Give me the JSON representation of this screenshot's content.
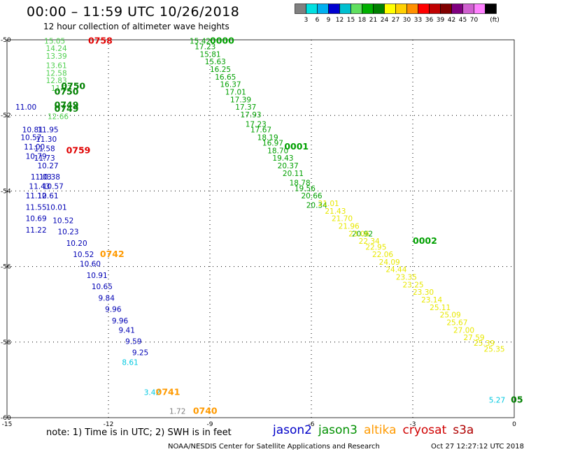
{
  "header": {
    "title": "00:00 – 11:59 UTC 10/26/2018",
    "subtitle": "12 hour collection of altimeter wave heights"
  },
  "colorbar": {
    "unit_label": "(ft)",
    "colors": [
      "#808080",
      "#00e0e0",
      "#00b0f0",
      "#0000d0",
      "#00c0d0",
      "#60e060",
      "#00b000",
      "#008000",
      "#ffff00",
      "#ffd000",
      "#ff9000",
      "#ff0000",
      "#c00000",
      "#800000",
      "#800080",
      "#d060d0",
      "#ff80ff",
      "#000000"
    ],
    "labels": [
      "3",
      "6",
      "9",
      "12",
      "15",
      "18",
      "21",
      "24",
      "27",
      "30",
      "33",
      "36",
      "39",
      "42",
      "45",
      "70"
    ]
  },
  "note": "note:  1) Time is in UTC;  2) SWH is in feet",
  "legend": [
    {
      "name": "jason2",
      "color": "#0000c8"
    },
    {
      "name": "jason3",
      "color": "#009000"
    },
    {
      "name": "altika",
      "color": "#ff9a00"
    },
    {
      "name": "cryosat",
      "color": "#d00000"
    },
    {
      "name": "s3a",
      "color": "#b00000"
    }
  ],
  "footer": {
    "left": "NOAA/NESDIS Center for Satellite Applications and Research",
    "right": "Oct 27 12:27:12 UTC 2018"
  },
  "chart_data": {
    "type": "scatter",
    "xlim": [
      -15,
      0
    ],
    "ylim": [
      -60,
      -50
    ],
    "x_ticks": [
      "-15",
      "-12",
      "-9",
      "-6",
      "-3",
      "0"
    ],
    "y_ticks": [
      "-50",
      "-52",
      "-54",
      "-56",
      "-58",
      "-60"
    ],
    "grid": true,
    "series": [
      {
        "name": "jason3",
        "color": "#00a000",
        "points": [
          {
            "x": -9.6,
            "y": -50.1,
            "v": "15.42"
          },
          {
            "x": -9.45,
            "y": -50.25,
            "v": "17.23"
          },
          {
            "x": -9.3,
            "y": -50.45,
            "v": "15.81"
          },
          {
            "x": -9.15,
            "y": -50.65,
            "v": "15.63"
          },
          {
            "x": -9.0,
            "y": -50.85,
            "v": "16.25"
          },
          {
            "x": -8.85,
            "y": -51.05,
            "v": "16.65"
          },
          {
            "x": -8.7,
            "y": -51.25,
            "v": "16.37"
          },
          {
            "x": -8.55,
            "y": -51.45,
            "v": "17.01"
          },
          {
            "x": -8.4,
            "y": -51.65,
            "v": "17.39"
          },
          {
            "x": -8.25,
            "y": -51.85,
            "v": "17.37"
          },
          {
            "x": -8.1,
            "y": -52.05,
            "v": "17.93"
          },
          {
            "x": -7.95,
            "y": -52.3,
            "v": "17.23"
          },
          {
            "x": -7.8,
            "y": -52.45,
            "v": "17.67"
          },
          {
            "x": -7.6,
            "y": -52.65,
            "v": "18.19"
          },
          {
            "x": -7.45,
            "y": -52.8,
            "v": "16.97"
          },
          {
            "x": -7.3,
            "y": -53.0,
            "v": "18.70"
          },
          {
            "x": -7.15,
            "y": -53.2,
            "v": "19.43"
          },
          {
            "x": -7.0,
            "y": -53.4,
            "v": "20.37"
          },
          {
            "x": -6.85,
            "y": -53.6,
            "v": "20.11"
          },
          {
            "x": -6.65,
            "y": -53.85,
            "v": "18.78"
          },
          {
            "x": -6.5,
            "y": -54.0,
            "v": "19.56"
          },
          {
            "x": -6.3,
            "y": -54.2,
            "v": "20.66"
          },
          {
            "x": -6.15,
            "y": -54.45,
            "v": "20.34"
          },
          {
            "x": -4.8,
            "y": -55.2,
            "v": "20.92"
          }
        ],
        "times": [
          {
            "x": -9.0,
            "y": -50.1,
            "t": "0000"
          },
          {
            "x": -6.8,
            "y": -52.9,
            "t": "0001"
          },
          {
            "x": -3.0,
            "y": -55.4,
            "t": "0002"
          }
        ]
      },
      {
        "name": "altika",
        "color": "#e8e800",
        "points": [
          {
            "x": -5.8,
            "y": -54.4,
            "v": "21.01"
          },
          {
            "x": -5.6,
            "y": -54.6,
            "v": "21.43"
          },
          {
            "x": -5.4,
            "y": -54.8,
            "v": "21.70"
          },
          {
            "x": -5.2,
            "y": -55.0,
            "v": "21.96"
          },
          {
            "x": -4.9,
            "y": -55.2,
            "v": "23.06"
          },
          {
            "x": -4.6,
            "y": -55.4,
            "v": "22.34"
          },
          {
            "x": -4.4,
            "y": -55.55,
            "v": "22.95"
          },
          {
            "x": -4.2,
            "y": -55.75,
            "v": "22.06"
          },
          {
            "x": -4.0,
            "y": -55.95,
            "v": "24.09"
          },
          {
            "x": -3.8,
            "y": -56.15,
            "v": "24.44"
          },
          {
            "x": -3.5,
            "y": -56.35,
            "v": "23.35"
          },
          {
            "x": -3.3,
            "y": -56.55,
            "v": "23.25"
          },
          {
            "x": -3.0,
            "y": -56.75,
            "v": "23.30"
          },
          {
            "x": -2.75,
            "y": -56.95,
            "v": "23.14"
          },
          {
            "x": -2.5,
            "y": -57.15,
            "v": "25.11"
          },
          {
            "x": -2.2,
            "y": -57.35,
            "v": "25.09"
          },
          {
            "x": -2.0,
            "y": -57.55,
            "v": "25.67"
          },
          {
            "x": -1.8,
            "y": -57.75,
            "v": "27.00"
          },
          {
            "x": -1.5,
            "y": -57.95,
            "v": "27.59"
          },
          {
            "x": -1.2,
            "y": -58.1,
            "v": "25.39"
          },
          {
            "x": -0.9,
            "y": -58.25,
            "v": "25.35"
          }
        ]
      },
      {
        "name": "jason2",
        "color": "#0000b4",
        "points": [
          {
            "x": -14.75,
            "y": -51.85,
            "v": "11.00"
          },
          {
            "x": -14.55,
            "y": -52.45,
            "v": "10.81"
          },
          {
            "x": -14.6,
            "y": -52.65,
            "v": "10.57"
          },
          {
            "x": -14.1,
            "y": -52.45,
            "v": "11.95"
          },
          {
            "x": -14.15,
            "y": -52.7,
            "v": "11.30"
          },
          {
            "x": -14.2,
            "y": -52.95,
            "v": "11.58"
          },
          {
            "x": -14.5,
            "y": -52.9,
            "v": "11.00"
          },
          {
            "x": -14.45,
            "y": -53.15,
            "v": "10.79"
          },
          {
            "x": -14.2,
            "y": -53.2,
            "v": "11.73"
          },
          {
            "x": -14.1,
            "y": -53.4,
            "v": "10.27"
          },
          {
            "x": -14.3,
            "y": -53.7,
            "v": "11.03"
          },
          {
            "x": -14.05,
            "y": -53.7,
            "v": "10.38"
          },
          {
            "x": -14.35,
            "y": -53.95,
            "v": "11.43"
          },
          {
            "x": -13.95,
            "y": -53.95,
            "v": "10.57"
          },
          {
            "x": -14.45,
            "y": -54.2,
            "v": "11.12"
          },
          {
            "x": -14.1,
            "y": -54.2,
            "v": "10.61"
          },
          {
            "x": -14.45,
            "y": -54.5,
            "v": "11.55"
          },
          {
            "x": -13.85,
            "y": -54.5,
            "v": "10.01"
          },
          {
            "x": -14.45,
            "y": -54.8,
            "v": "10.69"
          },
          {
            "x": -13.65,
            "y": -54.85,
            "v": "10.52"
          },
          {
            "x": -14.45,
            "y": -55.1,
            "v": "11.22"
          },
          {
            "x": -13.5,
            "y": -55.15,
            "v": "10.23"
          },
          {
            "x": -13.25,
            "y": -55.45,
            "v": "10.20"
          },
          {
            "x": -13.05,
            "y": -55.75,
            "v": "10.52"
          },
          {
            "x": -12.85,
            "y": -56.0,
            "v": "10.60"
          },
          {
            "x": -12.65,
            "y": -56.3,
            "v": "10.91"
          },
          {
            "x": -12.5,
            "y": -56.6,
            "v": "10.65"
          },
          {
            "x": -12.3,
            "y": -56.9,
            "v": "9.84"
          },
          {
            "x": -12.1,
            "y": -57.2,
            "v": "9.96"
          },
          {
            "x": -11.9,
            "y": -57.5,
            "v": "9.96"
          },
          {
            "x": -11.7,
            "y": -57.75,
            "v": "9.41"
          },
          {
            "x": -11.5,
            "y": -58.05,
            "v": "9.59"
          },
          {
            "x": -11.3,
            "y": -58.35,
            "v": "9.25"
          }
        ]
      },
      {
        "name": "cyan",
        "color": "#00c8e0",
        "points": [
          {
            "x": -11.6,
            "y": -58.6,
            "v": "8.61"
          },
          {
            "x": -10.95,
            "y": -59.4,
            "v": "3.42"
          },
          {
            "x": -0.75,
            "y": -59.6,
            "v": "5.27"
          }
        ]
      },
      {
        "name": "lightgreen",
        "color": "#50d050",
        "points": [
          {
            "x": -13.9,
            "y": -50.1,
            "v": "15.05"
          },
          {
            "x": -13.85,
            "y": -50.3,
            "v": "14.24"
          },
          {
            "x": -13.85,
            "y": -50.5,
            "v": "13.39"
          },
          {
            "x": -13.85,
            "y": -50.75,
            "v": "13.61"
          },
          {
            "x": -13.85,
            "y": -50.95,
            "v": "12.58"
          },
          {
            "x": -13.85,
            "y": -51.15,
            "v": "12.83"
          },
          {
            "x": -13.7,
            "y": -51.35,
            "v": "11.37"
          },
          {
            "x": -13.8,
            "y": -52.1,
            "v": "12.66"
          }
        ]
      },
      {
        "name": "gray",
        "color": "#808080",
        "points": [
          {
            "x": -10.2,
            "y": -59.9,
            "v": "1.72"
          }
        ]
      }
    ],
    "time_labels": [
      {
        "x": -12.6,
        "y": -50.1,
        "t": "0758",
        "color": "#e00000"
      },
      {
        "x": -13.4,
        "y": -51.3,
        "t": "0750",
        "color": "#008000"
      },
      {
        "x": -13.6,
        "y": -51.45,
        "t": "0750",
        "color": "#008000"
      },
      {
        "x": -13.6,
        "y": -51.8,
        "t": "0749",
        "color": "#008000"
      },
      {
        "x": -13.6,
        "y": -51.9,
        "t": "0749",
        "color": "#008000"
      },
      {
        "x": -13.25,
        "y": -53.0,
        "t": "0759",
        "color": "#e00000"
      },
      {
        "x": -12.25,
        "y": -55.75,
        "t": "0742",
        "color": "#ff9a00"
      },
      {
        "x": -10.6,
        "y": -59.4,
        "t": "0741",
        "color": "#ff9a00"
      },
      {
        "x": -9.5,
        "y": -59.9,
        "t": "0740",
        "color": "#ff9a00"
      },
      {
        "x": -0.1,
        "y": -59.6,
        "t": "05",
        "color": "#008000"
      }
    ]
  }
}
